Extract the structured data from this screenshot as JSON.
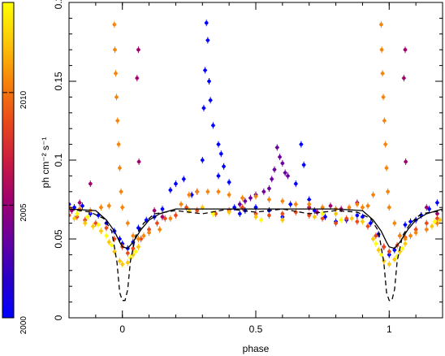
{
  "chart_data": {
    "type": "scatter",
    "xlabel": "phase",
    "ylabel": "ph cm⁻² s⁻¹",
    "xlim": [
      -0.2,
      1.2
    ],
    "ylim": [
      0,
      0.2
    ],
    "x_ticks": [
      0,
      0.5,
      1
    ],
    "x_tick_labels": [
      "0",
      "0.5",
      "1"
    ],
    "y_ticks": [
      0,
      0.05,
      0.1,
      0.15,
      0.2
    ],
    "y_tick_labels": [
      "0",
      "0.05",
      "0.1",
      "0.15",
      "0.2"
    ],
    "grid": false,
    "colorbar": {
      "position": "left",
      "range": [
        2000,
        2014
      ],
      "ticks": [
        2000,
        2005,
        2010
      ],
      "tick_labels": [
        "2000",
        "2005",
        "2010"
      ],
      "colors": [
        "#0000ff",
        "#2a00c8",
        "#6a009e",
        "#a0006e",
        "#cc1c40",
        "#ea4a1a",
        "#f7840a",
        "#fcc808",
        "#ffff00"
      ]
    },
    "series": [
      {
        "color": "#0000ff",
        "points": [
          [
            -0.2,
            0.072
          ],
          [
            -0.18,
            0.07
          ],
          [
            -0.15,
            0.071
          ],
          [
            -0.12,
            0.066
          ],
          [
            -0.09,
            0.065
          ],
          [
            -0.06,
            0.06
          ],
          [
            -0.03,
            0.055
          ],
          [
            -0.01,
            0.05
          ],
          [
            0.0,
            0.047
          ],
          [
            0.02,
            0.044
          ],
          [
            0.04,
            0.048
          ],
          [
            0.06,
            0.057
          ],
          [
            0.09,
            0.062
          ],
          [
            0.12,
            0.064
          ],
          [
            0.15,
            0.069
          ],
          [
            0.18,
            0.081
          ],
          [
            0.2,
            0.085
          ],
          [
            0.23,
            0.088
          ],
          [
            0.26,
            0.078
          ],
          [
            0.28,
            0.08
          ],
          [
            0.3,
            0.1
          ],
          [
            0.305,
            0.133
          ],
          [
            0.31,
            0.157
          ],
          [
            0.315,
            0.187
          ],
          [
            0.32,
            0.176
          ],
          [
            0.325,
            0.15
          ],
          [
            0.33,
            0.138
          ],
          [
            0.34,
            0.122
          ],
          [
            0.36,
            0.11
          ],
          [
            0.37,
            0.104
          ],
          [
            0.38,
            0.096
          ],
          [
            0.36,
            0.09
          ],
          [
            0.4,
            0.086
          ],
          [
            0.42,
            0.07
          ],
          [
            0.44,
            0.066
          ],
          [
            0.46,
            0.068
          ],
          [
            0.5,
            0.07
          ],
          [
            0.55,
            0.068
          ],
          [
            0.6,
            0.064
          ],
          [
            0.63,
            0.072
          ],
          [
            0.65,
            0.085
          ],
          [
            0.67,
            0.11
          ],
          [
            0.68,
            0.097
          ],
          [
            0.7,
            0.075
          ],
          [
            0.72,
            0.068
          ],
          [
            0.76,
            0.064
          ],
          [
            0.8,
            0.061
          ],
          [
            0.84,
            0.062
          ],
          [
            0.88,
            0.065
          ],
          [
            0.9,
            0.064
          ],
          [
            0.93,
            0.06
          ],
          [
            0.96,
            0.053
          ],
          [
            0.98,
            0.045
          ],
          [
            1.0,
            0.04
          ],
          [
            1.02,
            0.043
          ],
          [
            1.04,
            0.052
          ],
          [
            1.06,
            0.059
          ],
          [
            1.08,
            0.061
          ],
          [
            1.1,
            0.062
          ],
          [
            1.12,
            0.065
          ],
          [
            1.15,
            0.069
          ],
          [
            1.18,
            0.073
          ]
        ]
      },
      {
        "color": "#6a009e",
        "points": [
          [
            0.55,
            0.082
          ],
          [
            0.56,
            0.088
          ],
          [
            0.57,
            0.094
          ],
          [
            0.58,
            0.108
          ],
          [
            0.59,
            0.102
          ],
          [
            0.6,
            0.098
          ],
          [
            0.61,
            0.092
          ],
          [
            0.53,
            0.08
          ],
          [
            0.5,
            0.078
          ],
          [
            0.48,
            0.076
          ],
          [
            0.46,
            0.074
          ],
          [
            0.62,
            0.09
          ],
          [
            0.44,
            0.072
          ]
        ]
      },
      {
        "color": "#a0006e",
        "points": [
          [
            0.06,
            0.17
          ],
          [
            0.055,
            0.152
          ],
          [
            0.062,
            0.099
          ],
          [
            1.06,
            0.17
          ],
          [
            1.055,
            0.152
          ],
          [
            1.062,
            0.099
          ],
          [
            -0.12,
            0.085
          ],
          [
            -0.16,
            0.073
          ],
          [
            0.7,
            0.07
          ],
          [
            0.73,
            0.067
          ],
          [
            0.78,
            0.071
          ],
          [
            0.82,
            0.069
          ],
          [
            0.88,
            0.073
          ],
          [
            -0.19,
            0.068
          ],
          [
            0.12,
            0.068
          ],
          [
            0.15,
            0.064
          ],
          [
            1.14,
            0.07
          ],
          [
            1.18,
            0.066
          ]
        ]
      },
      {
        "color": "#ea4a1a",
        "points": [
          [
            -0.2,
            0.065
          ],
          [
            -0.17,
            0.064
          ],
          [
            -0.14,
            0.062
          ],
          [
            -0.1,
            0.06
          ],
          [
            -0.06,
            0.057
          ],
          [
            -0.03,
            0.05
          ],
          [
            0.0,
            0.045
          ],
          [
            0.02,
            0.041
          ],
          [
            0.04,
            0.044
          ],
          [
            0.07,
            0.05
          ],
          [
            0.1,
            0.056
          ],
          [
            0.13,
            0.06
          ],
          [
            0.16,
            0.063
          ],
          [
            0.2,
            0.065
          ],
          [
            0.24,
            0.07
          ],
          [
            0.28,
            0.068
          ],
          [
            0.35,
            0.066
          ],
          [
            0.4,
            0.068
          ],
          [
            0.45,
            0.07
          ],
          [
            0.5,
            0.066
          ],
          [
            0.55,
            0.065
          ],
          [
            0.6,
            0.066
          ],
          [
            0.65,
            0.067
          ],
          [
            0.7,
            0.065
          ],
          [
            0.75,
            0.063
          ],
          [
            0.8,
            0.06
          ],
          [
            0.84,
            0.063
          ],
          [
            0.88,
            0.061
          ],
          [
            0.92,
            0.058
          ],
          [
            0.95,
            0.052
          ],
          [
            0.98,
            0.045
          ],
          [
            1.0,
            0.042
          ],
          [
            1.03,
            0.046
          ],
          [
            1.06,
            0.051
          ],
          [
            1.1,
            0.056
          ],
          [
            1.14,
            0.06
          ],
          [
            1.18,
            0.063
          ]
        ]
      },
      {
        "color": "#f7840a",
        "points": [
          [
            -0.03,
            0.186
          ],
          [
            -0.028,
            0.17
          ],
          [
            -0.025,
            0.155
          ],
          [
            -0.022,
            0.14
          ],
          [
            -0.018,
            0.125
          ],
          [
            -0.014,
            0.11
          ],
          [
            -0.01,
            0.095
          ],
          [
            -0.005,
            0.08
          ],
          [
            0.0,
            0.07
          ],
          [
            0.02,
            0.06
          ],
          [
            0.04,
            0.052
          ],
          [
            0.06,
            0.05
          ],
          [
            0.08,
            0.052
          ],
          [
            0.1,
            0.054
          ],
          [
            0.14,
            0.056
          ],
          [
            0.18,
            0.063
          ],
          [
            0.22,
            0.072
          ],
          [
            0.25,
            0.078
          ],
          [
            0.28,
            0.08
          ],
          [
            0.32,
            0.08
          ],
          [
            0.36,
            0.08
          ],
          [
            0.4,
            0.078
          ],
          [
            0.45,
            0.076
          ],
          [
            0.5,
            0.077
          ],
          [
            0.55,
            0.075
          ],
          [
            0.6,
            0.074
          ],
          [
            0.65,
            0.072
          ],
          [
            0.7,
            0.072
          ],
          [
            0.75,
            0.07
          ],
          [
            0.8,
            0.069
          ],
          [
            0.85,
            0.07
          ],
          [
            0.88,
            0.072
          ],
          [
            0.9,
            0.07
          ],
          [
            0.92,
            0.071
          ],
          [
            0.94,
            0.078
          ],
          [
            0.97,
            0.186
          ],
          [
            0.972,
            0.17
          ],
          [
            0.975,
            0.155
          ],
          [
            0.978,
            0.14
          ],
          [
            0.982,
            0.125
          ],
          [
            0.986,
            0.11
          ],
          [
            0.99,
            0.095
          ],
          [
            0.995,
            0.08
          ],
          [
            1.0,
            0.07
          ],
          [
            1.02,
            0.06
          ],
          [
            1.04,
            0.052
          ],
          [
            1.06,
            0.05
          ],
          [
            1.08,
            0.052
          ],
          [
            1.1,
            0.054
          ],
          [
            1.14,
            0.056
          ],
          [
            1.18,
            0.06
          ],
          [
            -0.16,
            0.069
          ],
          [
            -0.12,
            0.068
          ],
          [
            -0.08,
            0.07
          ],
          [
            -0.05,
            0.071
          ],
          [
            -0.2,
            0.07
          ]
        ]
      },
      {
        "color": "#fcc808",
        "points": [
          [
            -0.18,
            0.063
          ],
          [
            -0.14,
            0.06
          ],
          [
            -0.11,
            0.058
          ],
          [
            -0.08,
            0.055
          ],
          [
            -0.05,
            0.048
          ],
          [
            -0.03,
            0.042
          ],
          [
            -0.01,
            0.036
          ],
          [
            0.0,
            0.034
          ],
          [
            0.02,
            0.035
          ],
          [
            0.04,
            0.04
          ],
          [
            0.06,
            0.045
          ],
          [
            0.25,
            0.068
          ],
          [
            0.3,
            0.07
          ],
          [
            0.4,
            0.067
          ],
          [
            0.5,
            0.064
          ],
          [
            0.6,
            0.062
          ],
          [
            0.72,
            0.064
          ],
          [
            0.8,
            0.066
          ],
          [
            0.86,
            0.063
          ],
          [
            0.9,
            0.061
          ],
          [
            0.94,
            0.05
          ],
          [
            0.96,
            0.043
          ],
          [
            0.98,
            0.036
          ],
          [
            1.0,
            0.034
          ],
          [
            1.02,
            0.037
          ],
          [
            1.04,
            0.042
          ],
          [
            1.06,
            0.047
          ],
          [
            1.16,
            0.058
          ],
          [
            1.19,
            0.062
          ]
        ]
      },
      {
        "color": "#ffff00",
        "points": [
          [
            -0.17,
            0.066
          ],
          [
            -0.13,
            0.064
          ],
          [
            -0.09,
            0.059
          ],
          [
            -0.06,
            0.052
          ],
          [
            -0.04,
            0.046
          ],
          [
            0.03,
            0.038
          ],
          [
            0.05,
            0.042
          ],
          [
            0.34,
            0.066
          ],
          [
            0.52,
            0.062
          ],
          [
            0.75,
            0.066
          ],
          [
            0.82,
            0.062
          ],
          [
            0.95,
            0.047
          ],
          [
            0.97,
            0.04
          ],
          [
            1.03,
            0.039
          ],
          [
            1.05,
            0.044
          ],
          [
            1.17,
            0.061
          ]
        ]
      }
    ],
    "curves": [
      {
        "style": "solid",
        "points": [
          [
            -0.2,
            0.069
          ],
          [
            -0.1,
            0.068
          ],
          [
            -0.06,
            0.062
          ],
          [
            -0.03,
            0.055
          ],
          [
            -0.01,
            0.048
          ],
          [
            0.0,
            0.045
          ],
          [
            0.02,
            0.044
          ],
          [
            0.04,
            0.048
          ],
          [
            0.07,
            0.056
          ],
          [
            0.1,
            0.062
          ],
          [
            0.14,
            0.066
          ],
          [
            0.2,
            0.069
          ],
          [
            0.35,
            0.069
          ],
          [
            0.5,
            0.069
          ],
          [
            0.65,
            0.069
          ],
          [
            0.8,
            0.069
          ],
          [
            0.9,
            0.068
          ],
          [
            0.94,
            0.062
          ],
          [
            0.97,
            0.055
          ],
          [
            0.99,
            0.048
          ],
          [
            1.0,
            0.045
          ],
          [
            1.02,
            0.044
          ],
          [
            1.04,
            0.048
          ],
          [
            1.07,
            0.056
          ],
          [
            1.1,
            0.062
          ],
          [
            1.14,
            0.066
          ],
          [
            1.2,
            0.069
          ]
        ]
      },
      {
        "style": "dashed",
        "points": [
          [
            -0.2,
            0.069
          ],
          [
            -0.12,
            0.067
          ],
          [
            -0.07,
            0.063
          ],
          [
            -0.04,
            0.055
          ],
          [
            -0.02,
            0.035
          ],
          [
            -0.01,
            0.016
          ],
          [
            0.0,
            0.011
          ],
          [
            0.01,
            0.011
          ],
          [
            0.02,
            0.018
          ],
          [
            0.03,
            0.036
          ],
          [
            0.05,
            0.052
          ],
          [
            0.08,
            0.06
          ],
          [
            0.12,
            0.066
          ],
          [
            0.2,
            0.068
          ],
          [
            0.3,
            0.066
          ],
          [
            0.4,
            0.069
          ],
          [
            0.5,
            0.067
          ],
          [
            0.6,
            0.069
          ],
          [
            0.7,
            0.066
          ],
          [
            0.8,
            0.068
          ],
          [
            0.88,
            0.067
          ],
          [
            0.93,
            0.063
          ],
          [
            0.96,
            0.055
          ],
          [
            0.98,
            0.035
          ],
          [
            0.99,
            0.016
          ],
          [
            1.0,
            0.011
          ],
          [
            1.01,
            0.011
          ],
          [
            1.02,
            0.018
          ],
          [
            1.03,
            0.036
          ],
          [
            1.05,
            0.052
          ],
          [
            1.08,
            0.06
          ],
          [
            1.12,
            0.066
          ],
          [
            1.2,
            0.068
          ]
        ]
      }
    ]
  }
}
